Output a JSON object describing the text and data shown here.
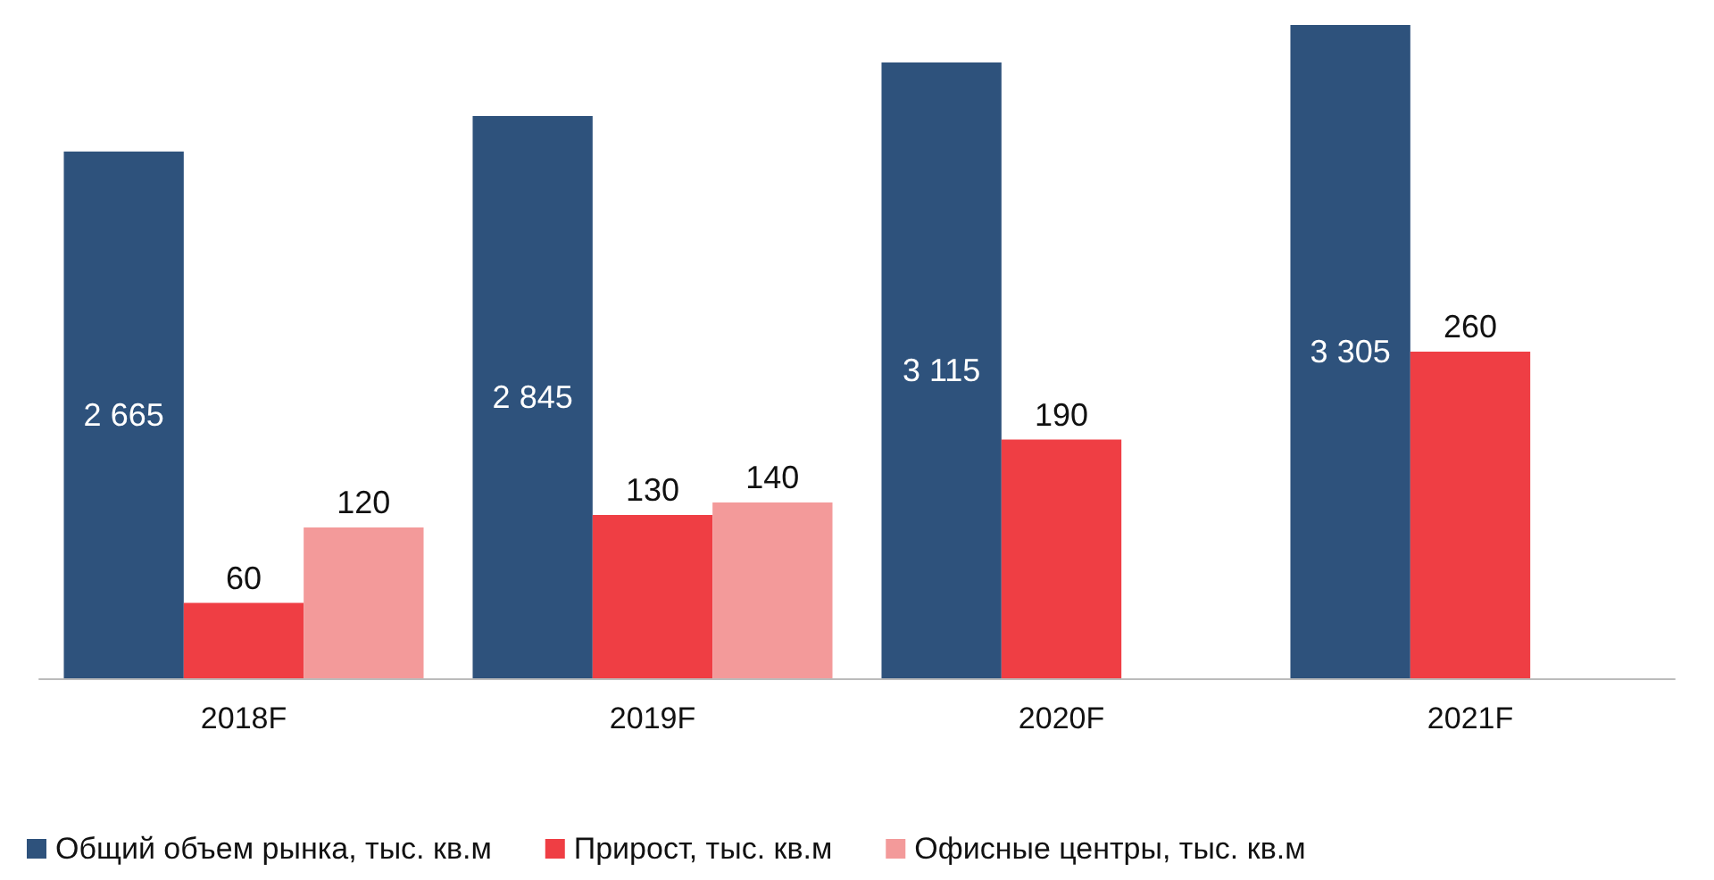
{
  "chart_data": {
    "type": "bar",
    "categories": [
      "2018F",
      "2019F",
      "2020F",
      "2021F"
    ],
    "series": [
      {
        "name": "Общий объем рынка, тыс. кв.м",
        "color": "#2e527c",
        "values": [
          2665,
          2845,
          3115,
          3305
        ],
        "axis": "y2"
      },
      {
        "name": "Прирост, тыс. кв.м",
        "color": "#ef3e44",
        "values": [
          60,
          130,
          190,
          260
        ]
      },
      {
        "name": "Офисные центры, тыс. кв.м",
        "color": "#f39a9a",
        "values": [
          120,
          140,
          null,
          null
        ]
      }
    ],
    "ylim": [
      0,
      520
    ],
    "y2lim": [
      0,
      3305
    ],
    "tick_labels": "x",
    "data_labels": true,
    "grid": false,
    "legend": "bottom"
  }
}
